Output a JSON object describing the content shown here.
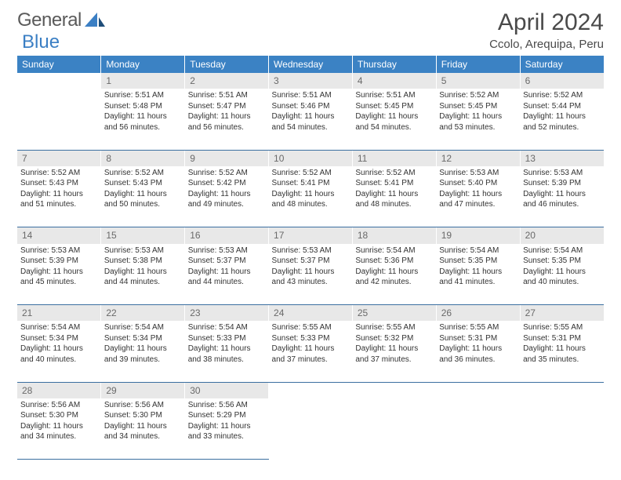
{
  "logo": {
    "part1": "General",
    "part2": "Blue"
  },
  "title": "April 2024",
  "location": "Ccolo, Arequipa, Peru",
  "colors": {
    "header_bg": "#3b82c4",
    "header_text": "#ffffff",
    "daynum_bg": "#e8e8e8",
    "daynum_text": "#6a6a6a",
    "body_text": "#333333",
    "row_divider": "#3b6fa0",
    "logo_gray": "#5a5a5a",
    "logo_blue": "#3b7fc4"
  },
  "weekdays": [
    "Sunday",
    "Monday",
    "Tuesday",
    "Wednesday",
    "Thursday",
    "Friday",
    "Saturday"
  ],
  "weeks": [
    {
      "nums": [
        "",
        "1",
        "2",
        "3",
        "4",
        "5",
        "6"
      ],
      "cells": [
        null,
        {
          "sr": "Sunrise: 5:51 AM",
          "ss": "Sunset: 5:48 PM",
          "d1": "Daylight: 11 hours",
          "d2": "and 56 minutes."
        },
        {
          "sr": "Sunrise: 5:51 AM",
          "ss": "Sunset: 5:47 PM",
          "d1": "Daylight: 11 hours",
          "d2": "and 56 minutes."
        },
        {
          "sr": "Sunrise: 5:51 AM",
          "ss": "Sunset: 5:46 PM",
          "d1": "Daylight: 11 hours",
          "d2": "and 54 minutes."
        },
        {
          "sr": "Sunrise: 5:51 AM",
          "ss": "Sunset: 5:45 PM",
          "d1": "Daylight: 11 hours",
          "d2": "and 54 minutes."
        },
        {
          "sr": "Sunrise: 5:52 AM",
          "ss": "Sunset: 5:45 PM",
          "d1": "Daylight: 11 hours",
          "d2": "and 53 minutes."
        },
        {
          "sr": "Sunrise: 5:52 AM",
          "ss": "Sunset: 5:44 PM",
          "d1": "Daylight: 11 hours",
          "d2": "and 52 minutes."
        }
      ]
    },
    {
      "nums": [
        "7",
        "8",
        "9",
        "10",
        "11",
        "12",
        "13"
      ],
      "cells": [
        {
          "sr": "Sunrise: 5:52 AM",
          "ss": "Sunset: 5:43 PM",
          "d1": "Daylight: 11 hours",
          "d2": "and 51 minutes."
        },
        {
          "sr": "Sunrise: 5:52 AM",
          "ss": "Sunset: 5:43 PM",
          "d1": "Daylight: 11 hours",
          "d2": "and 50 minutes."
        },
        {
          "sr": "Sunrise: 5:52 AM",
          "ss": "Sunset: 5:42 PM",
          "d1": "Daylight: 11 hours",
          "d2": "and 49 minutes."
        },
        {
          "sr": "Sunrise: 5:52 AM",
          "ss": "Sunset: 5:41 PM",
          "d1": "Daylight: 11 hours",
          "d2": "and 48 minutes."
        },
        {
          "sr": "Sunrise: 5:52 AM",
          "ss": "Sunset: 5:41 PM",
          "d1": "Daylight: 11 hours",
          "d2": "and 48 minutes."
        },
        {
          "sr": "Sunrise: 5:53 AM",
          "ss": "Sunset: 5:40 PM",
          "d1": "Daylight: 11 hours",
          "d2": "and 47 minutes."
        },
        {
          "sr": "Sunrise: 5:53 AM",
          "ss": "Sunset: 5:39 PM",
          "d1": "Daylight: 11 hours",
          "d2": "and 46 minutes."
        }
      ]
    },
    {
      "nums": [
        "14",
        "15",
        "16",
        "17",
        "18",
        "19",
        "20"
      ],
      "cells": [
        {
          "sr": "Sunrise: 5:53 AM",
          "ss": "Sunset: 5:39 PM",
          "d1": "Daylight: 11 hours",
          "d2": "and 45 minutes."
        },
        {
          "sr": "Sunrise: 5:53 AM",
          "ss": "Sunset: 5:38 PM",
          "d1": "Daylight: 11 hours",
          "d2": "and 44 minutes."
        },
        {
          "sr": "Sunrise: 5:53 AM",
          "ss": "Sunset: 5:37 PM",
          "d1": "Daylight: 11 hours",
          "d2": "and 44 minutes."
        },
        {
          "sr": "Sunrise: 5:53 AM",
          "ss": "Sunset: 5:37 PM",
          "d1": "Daylight: 11 hours",
          "d2": "and 43 minutes."
        },
        {
          "sr": "Sunrise: 5:54 AM",
          "ss": "Sunset: 5:36 PM",
          "d1": "Daylight: 11 hours",
          "d2": "and 42 minutes."
        },
        {
          "sr": "Sunrise: 5:54 AM",
          "ss": "Sunset: 5:35 PM",
          "d1": "Daylight: 11 hours",
          "d2": "and 41 minutes."
        },
        {
          "sr": "Sunrise: 5:54 AM",
          "ss": "Sunset: 5:35 PM",
          "d1": "Daylight: 11 hours",
          "d2": "and 40 minutes."
        }
      ]
    },
    {
      "nums": [
        "21",
        "22",
        "23",
        "24",
        "25",
        "26",
        "27"
      ],
      "cells": [
        {
          "sr": "Sunrise: 5:54 AM",
          "ss": "Sunset: 5:34 PM",
          "d1": "Daylight: 11 hours",
          "d2": "and 40 minutes."
        },
        {
          "sr": "Sunrise: 5:54 AM",
          "ss": "Sunset: 5:34 PM",
          "d1": "Daylight: 11 hours",
          "d2": "and 39 minutes."
        },
        {
          "sr": "Sunrise: 5:54 AM",
          "ss": "Sunset: 5:33 PM",
          "d1": "Daylight: 11 hours",
          "d2": "and 38 minutes."
        },
        {
          "sr": "Sunrise: 5:55 AM",
          "ss": "Sunset: 5:33 PM",
          "d1": "Daylight: 11 hours",
          "d2": "and 37 minutes."
        },
        {
          "sr": "Sunrise: 5:55 AM",
          "ss": "Sunset: 5:32 PM",
          "d1": "Daylight: 11 hours",
          "d2": "and 37 minutes."
        },
        {
          "sr": "Sunrise: 5:55 AM",
          "ss": "Sunset: 5:31 PM",
          "d1": "Daylight: 11 hours",
          "d2": "and 36 minutes."
        },
        {
          "sr": "Sunrise: 5:55 AM",
          "ss": "Sunset: 5:31 PM",
          "d1": "Daylight: 11 hours",
          "d2": "and 35 minutes."
        }
      ]
    },
    {
      "nums": [
        "28",
        "29",
        "30",
        "",
        "",
        "",
        ""
      ],
      "cells": [
        {
          "sr": "Sunrise: 5:56 AM",
          "ss": "Sunset: 5:30 PM",
          "d1": "Daylight: 11 hours",
          "d2": "and 34 minutes."
        },
        {
          "sr": "Sunrise: 5:56 AM",
          "ss": "Sunset: 5:30 PM",
          "d1": "Daylight: 11 hours",
          "d2": "and 34 minutes."
        },
        {
          "sr": "Sunrise: 5:56 AM",
          "ss": "Sunset: 5:29 PM",
          "d1": "Daylight: 11 hours",
          "d2": "and 33 minutes."
        },
        null,
        null,
        null,
        null
      ]
    }
  ]
}
